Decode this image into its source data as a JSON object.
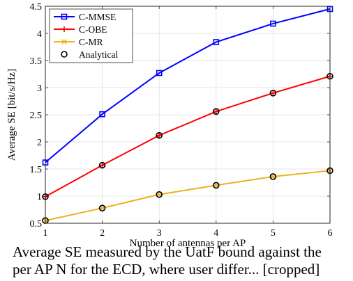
{
  "chart_data": {
    "type": "line",
    "title": "",
    "xlabel": "Number of antennas per AP",
    "ylabel": "Average SE [bit/s/Hz]",
    "xlim": [
      1,
      6
    ],
    "ylim": [
      0.5,
      4.5
    ],
    "x_ticks": [
      "1",
      "2",
      "3",
      "4",
      "5",
      "6"
    ],
    "y_ticks": [
      "0.5",
      "1",
      "1.5",
      "2",
      "2.5",
      "3",
      "3.5",
      "4",
      "4.5"
    ],
    "grid": true,
    "legend_position": "top-left",
    "x": [
      1,
      2,
      3,
      4,
      5,
      6
    ],
    "series": [
      {
        "name": "C-MMSE",
        "color": "#0000ff",
        "marker": "square",
        "values": [
          1.62,
          2.51,
          3.27,
          3.84,
          4.18,
          4.45
        ]
      },
      {
        "name": "C-OBE",
        "color": "#ff0000",
        "marker": "plus",
        "values": [
          0.99,
          1.57,
          2.12,
          2.56,
          2.9,
          3.21
        ]
      },
      {
        "name": "C-MR",
        "color": "#edb120",
        "marker": "x",
        "values": [
          0.55,
          0.78,
          1.03,
          1.2,
          1.36,
          1.47
        ]
      }
    ],
    "analytical": {
      "name": "Analytical",
      "marker": "circle",
      "points": [
        [
          1,
          0.99
        ],
        [
          2,
          1.57
        ],
        [
          3,
          2.12
        ],
        [
          4,
          2.56
        ],
        [
          5,
          2.9
        ],
        [
          6,
          3.21
        ],
        [
          1,
          0.55
        ],
        [
          2,
          0.78
        ],
        [
          3,
          1.03
        ],
        [
          4,
          1.2
        ],
        [
          5,
          1.36
        ],
        [
          6,
          1.47
        ]
      ]
    }
  },
  "caption": {
    "line1": "Average SE measured by the UatF bound against the",
    "line2": "per AP N for the ECD, where user differ... [cropped]"
  }
}
